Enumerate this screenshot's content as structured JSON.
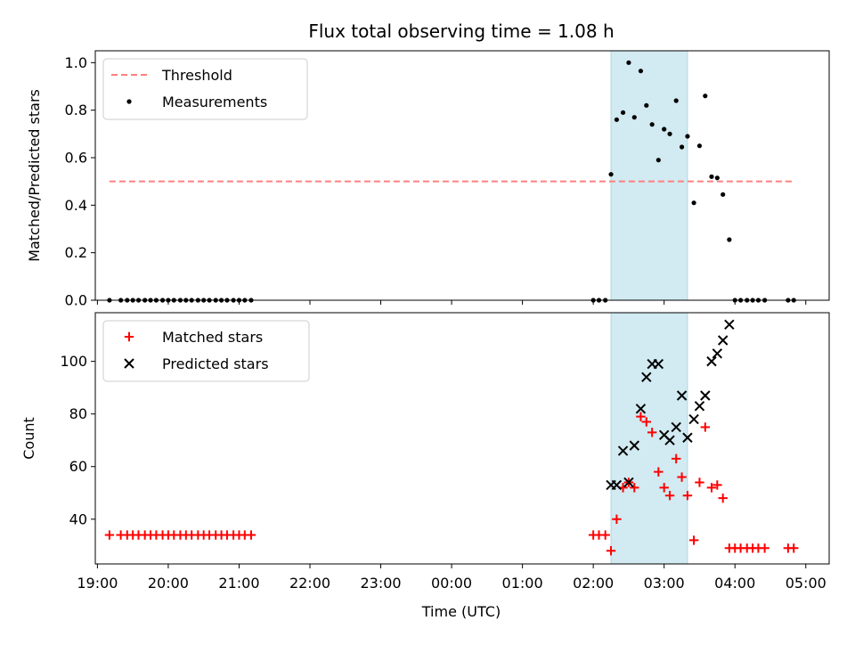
{
  "chart_data": [
    {
      "type": "scatter",
      "title": "Flux total observing time = 1.08 h",
      "xlabel": "",
      "ylabel": "Matched/Predicted stars",
      "ylim": [
        0,
        1.05
      ],
      "yticks": [
        "0.0",
        "0.2",
        "0.4",
        "0.6",
        "0.8",
        "1.0"
      ],
      "ytick_values": [
        0,
        0.2,
        0.4,
        0.6,
        0.8,
        1.0
      ],
      "shaded_span_hours": [
        26.25,
        27.33
      ],
      "shaded_color": "#add8e6",
      "legend_position": "upper-left",
      "threshold": {
        "name": "Threshold",
        "value": 0.5,
        "x_range_hours": [
          19.17,
          28.83
        ],
        "color": "#ff7f7f"
      },
      "series": [
        {
          "name": "Measurements",
          "color": "#000000",
          "x_hours": [
            19.17,
            19.33,
            19.42,
            19.5,
            19.58,
            19.67,
            19.75,
            19.83,
            19.92,
            20.0,
            20.08,
            20.17,
            20.25,
            20.33,
            20.42,
            20.5,
            20.58,
            20.67,
            20.75,
            20.83,
            20.92,
            21.0,
            21.08,
            21.17,
            26.0,
            26.08,
            26.17,
            26.25,
            26.33,
            26.42,
            26.5,
            26.58,
            26.67,
            26.75,
            26.83,
            26.92,
            27.0,
            27.08,
            27.17,
            27.25,
            27.33,
            27.42,
            27.5,
            27.58,
            27.67,
            27.75,
            27.83,
            27.92,
            28.0,
            28.08,
            28.17,
            28.25,
            28.33,
            28.42,
            28.75,
            28.83
          ],
          "y": [
            0,
            0,
            0,
            0,
            0,
            0,
            0,
            0,
            0,
            0,
            0,
            0,
            0,
            0,
            0,
            0,
            0,
            0,
            0,
            0,
            0,
            0,
            0,
            0,
            0,
            0,
            0,
            0.53,
            0.76,
            0.79,
            1.0,
            0.77,
            0.965,
            0.82,
            0.74,
            0.59,
            0.72,
            0.7,
            0.84,
            0.645,
            0.69,
            0.41,
            0.65,
            0.86,
            0.52,
            0.515,
            0.445,
            0.255,
            0,
            0,
            0,
            0,
            0,
            0,
            0,
            0
          ]
        }
      ]
    },
    {
      "type": "scatter",
      "title": "",
      "xlabel": "Time (UTC)",
      "ylabel": "Count",
      "ylim": [
        23,
        118.5
      ],
      "yticks": [
        "40",
        "60",
        "80",
        "100"
      ],
      "ytick_values": [
        40,
        60,
        80,
        100
      ],
      "xticks": [
        "19:00",
        "20:00",
        "21:00",
        "22:00",
        "23:00",
        "00:00",
        "01:00",
        "02:00",
        "03:00",
        "04:00",
        "05:00"
      ],
      "xtick_hours": [
        19,
        20,
        21,
        22,
        23,
        24,
        25,
        26,
        27,
        28,
        29
      ],
      "xlim_hours": [
        18.97,
        29.33
      ],
      "shaded_span_hours": [
        26.25,
        27.33
      ],
      "shaded_color": "#add8e6",
      "legend_position": "upper-left",
      "series": [
        {
          "name": "Matched stars",
          "marker": "plus",
          "color": "#ff0000",
          "x_hours": [
            19.17,
            19.33,
            19.42,
            19.5,
            19.58,
            19.67,
            19.75,
            19.83,
            19.92,
            20.0,
            20.08,
            20.17,
            20.25,
            20.33,
            20.42,
            20.5,
            20.58,
            20.67,
            20.75,
            20.83,
            20.92,
            21.0,
            21.08,
            21.17,
            26.0,
            26.08,
            26.17,
            26.25,
            26.33,
            26.42,
            26.5,
            26.58,
            26.67,
            26.75,
            26.83,
            26.92,
            27.0,
            27.08,
            27.17,
            27.25,
            27.33,
            27.42,
            27.5,
            27.58,
            27.67,
            27.75,
            27.83,
            27.92,
            28.0,
            28.08,
            28.17,
            28.25,
            28.33,
            28.42,
            28.75,
            28.83
          ],
          "y": [
            34,
            34,
            34,
            34,
            34,
            34,
            34,
            34,
            34,
            34,
            34,
            34,
            34,
            34,
            34,
            34,
            34,
            34,
            34,
            34,
            34,
            34,
            34,
            34,
            34,
            34,
            34,
            28,
            40,
            52,
            54,
            52,
            79,
            77,
            73,
            58,
            52,
            49,
            63,
            56,
            49,
            32,
            54,
            75,
            52,
            53,
            48,
            29,
            29,
            29,
            29,
            29,
            29,
            29,
            29,
            29
          ]
        },
        {
          "name": "Predicted stars",
          "marker": "x",
          "color": "#000000",
          "x_hours": [
            26.25,
            26.33,
            26.42,
            26.5,
            26.58,
            26.67,
            26.75,
            26.83,
            26.92,
            27.0,
            27.08,
            27.17,
            27.25,
            27.33,
            27.42,
            27.5,
            27.58,
            27.67,
            27.75,
            27.83,
            27.92
          ],
          "y": [
            53,
            53,
            66,
            54,
            68,
            82,
            94,
            99,
            99,
            72,
            70,
            75,
            87,
            71,
            78,
            83,
            87,
            100,
            103,
            108,
            114
          ]
        }
      ]
    }
  ]
}
